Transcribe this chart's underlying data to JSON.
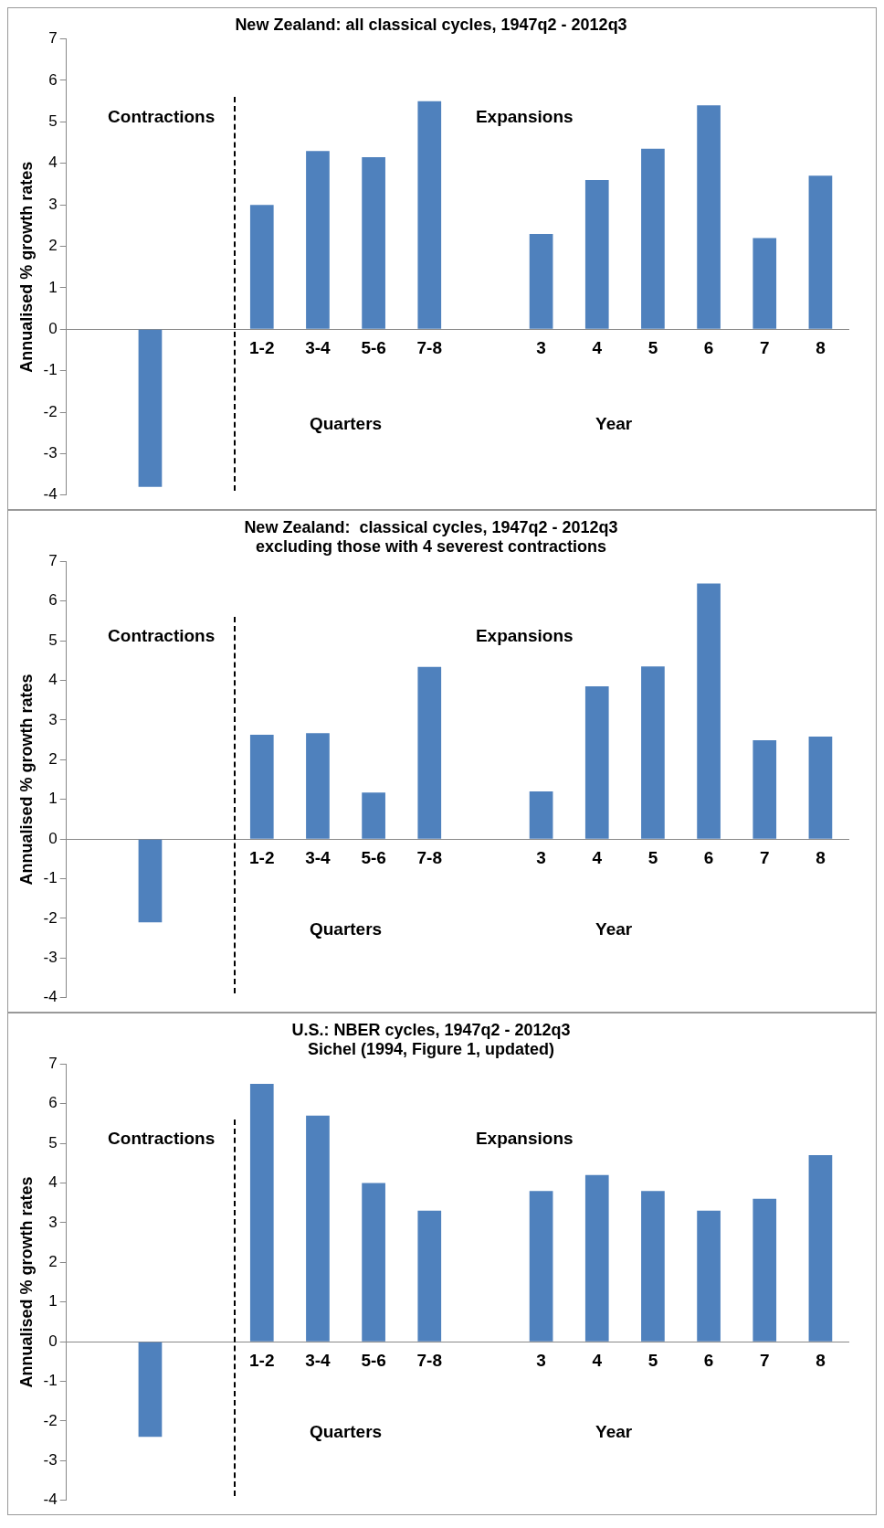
{
  "chart_data": [
    {
      "type": "bar",
      "title": "New Zealand: all classical cycles, 1947q2 - 2012q3",
      "ylabel": "Annualised % growth rates",
      "categories": [
        null,
        null,
        null,
        "1-2",
        "3-4",
        "5-6",
        "7-8",
        null,
        "3",
        "4",
        "5",
        "6",
        "7",
        "8"
      ],
      "values": [
        null,
        -3.8,
        null,
        3.0,
        4.3,
        4.15,
        5.5,
        null,
        2.3,
        3.6,
        4.35,
        5.4,
        2.2,
        3.7
      ],
      "color": "#4f81bd",
      "ylim": [
        -4,
        7
      ],
      "yticks": [
        -4,
        -3,
        -2,
        -1,
        0,
        1,
        2,
        3,
        4,
        5,
        6,
        7
      ],
      "grid": false,
      "legend": false,
      "annotations": [
        "Contractions",
        "Expansions",
        "Quarters",
        "Year"
      ]
    },
    {
      "type": "bar",
      "title": "New Zealand:  classical cycles, 1947q2 - 2012q3",
      "subtitle": "excluding those with 4 severest contractions",
      "ylabel": "Annualised % growth rates",
      "categories": [
        null,
        null,
        null,
        "1-2",
        "3-4",
        "5-6",
        "7-8",
        null,
        "3",
        "4",
        "5",
        "6",
        "7",
        "8"
      ],
      "values": [
        null,
        -2.1,
        null,
        2.63,
        2.67,
        1.17,
        4.34,
        null,
        1.2,
        3.85,
        4.35,
        6.44,
        2.49,
        2.58
      ],
      "color": "#4f81bd",
      "ylim": [
        -4,
        7
      ],
      "yticks": [
        -4,
        -3,
        -2,
        -1,
        0,
        1,
        2,
        3,
        4,
        5,
        6,
        7
      ],
      "grid": false,
      "legend": false,
      "annotations": [
        "Contractions",
        "Expansions",
        "Quarters",
        "Year"
      ]
    },
    {
      "type": "bar",
      "title": "U.S.: NBER cycles, 1947q2 - 2012q3",
      "subtitle": "Sichel (1994, Figure 1, updated)",
      "ylabel": "Annualised % growth rates",
      "categories": [
        null,
        null,
        null,
        "1-2",
        "3-4",
        "5-6",
        "7-8",
        null,
        "3",
        "4",
        "5",
        "6",
        "7",
        "8"
      ],
      "values": [
        null,
        -2.4,
        null,
        6.5,
        5.7,
        4.0,
        3.3,
        null,
        3.8,
        4.2,
        3.8,
        3.3,
        3.6,
        4.7
      ],
      "color": "#4f81bd",
      "ylim": [
        -4,
        7
      ],
      "yticks": [
        -4,
        -3,
        -2,
        -1,
        0,
        1,
        2,
        3,
        4,
        5,
        6,
        7
      ],
      "grid": false,
      "legend": false,
      "annotations": [
        "Contractions",
        "Expansions",
        "Quarters",
        "Year"
      ]
    }
  ]
}
